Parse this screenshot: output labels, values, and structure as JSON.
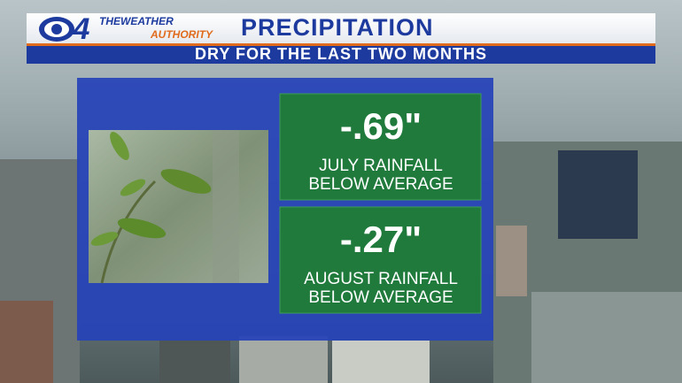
{
  "logo": {
    "channel": "4",
    "line1": "THEWEATHER",
    "line2": "AUTHORITY"
  },
  "header": {
    "title": "PRECIPITATION",
    "subtitle": "DRY FOR THE LAST TWO MONTHS"
  },
  "panels": [
    {
      "value": "-.69\"",
      "lines": [
        "JULY RAINFALL",
        "BELOW AVERAGE"
      ]
    },
    {
      "value": "-.27\"",
      "lines": [
        "AUGUST RAINFALL",
        "BELOW AVERAGE"
      ]
    }
  ]
}
